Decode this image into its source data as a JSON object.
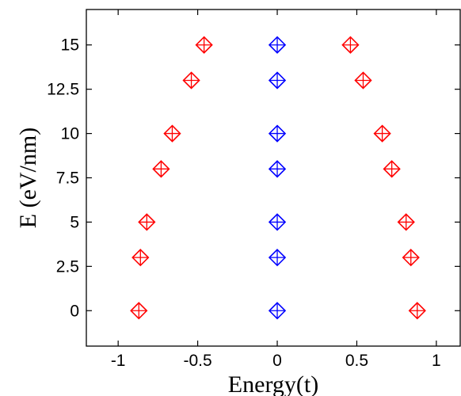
{
  "chart_data": {
    "type": "scatter",
    "title": "",
    "xlabel": "Energy(t)",
    "ylabel": "E (eV/nm)",
    "xlim": [
      -1.2,
      1.15
    ],
    "ylim": [
      -2,
      17
    ],
    "xticks": [
      -1,
      -0.5,
      0,
      0.5,
      1
    ],
    "xtick_labels": [
      "-1",
      "-0.5",
      "0",
      "0.5",
      "1"
    ],
    "yticks": [
      0,
      2.5,
      5,
      7.5,
      10,
      12.5,
      15
    ],
    "ytick_labels": [
      "0",
      "2.5",
      "5",
      "7.5",
      "10",
      "12.5",
      "15"
    ],
    "grid": false,
    "legend": "none",
    "marker": "diamond-plus",
    "series": [
      {
        "color": "#ff0000",
        "points": [
          {
            "x": -0.87,
            "y": 0
          },
          {
            "x": 0.88,
            "y": 0
          },
          {
            "x": -0.86,
            "y": 3
          },
          {
            "x": 0.84,
            "y": 3
          },
          {
            "x": -0.82,
            "y": 5
          },
          {
            "x": 0.81,
            "y": 5
          },
          {
            "x": -0.73,
            "y": 8
          },
          {
            "x": 0.72,
            "y": 8
          },
          {
            "x": -0.66,
            "y": 10
          },
          {
            "x": 0.66,
            "y": 10
          },
          {
            "x": -0.54,
            "y": 13
          },
          {
            "x": 0.54,
            "y": 13
          },
          {
            "x": -0.46,
            "y": 15
          },
          {
            "x": 0.46,
            "y": 15
          }
        ]
      },
      {
        "color": "#0000ff",
        "points": [
          {
            "x": 0,
            "y": 0
          },
          {
            "x": 0,
            "y": 3
          },
          {
            "x": 0,
            "y": 5
          },
          {
            "x": 0,
            "y": 8
          },
          {
            "x": 0,
            "y": 10
          },
          {
            "x": 0,
            "y": 13
          },
          {
            "x": 0,
            "y": 15
          }
        ]
      }
    ]
  }
}
